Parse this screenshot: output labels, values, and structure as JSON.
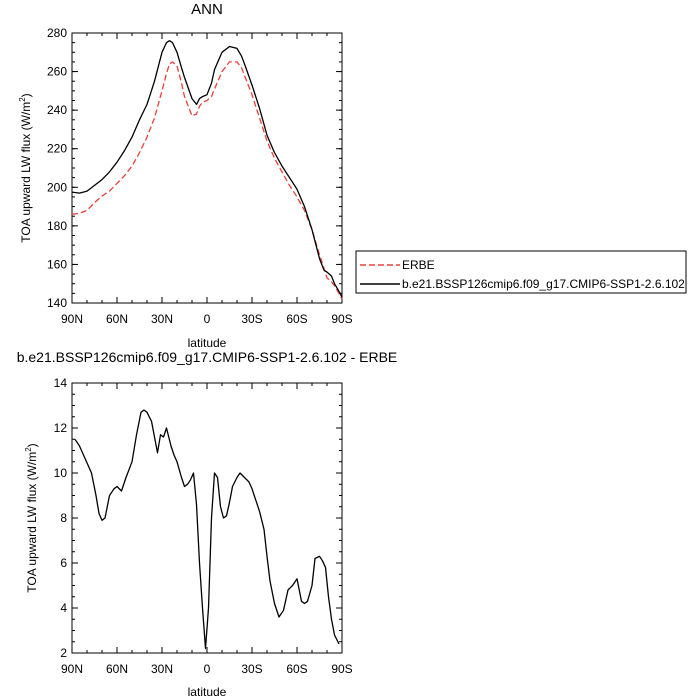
{
  "chart_data": [
    {
      "type": "line",
      "title": "ANN",
      "xlabel": "latitude",
      "ylabel_main": "TOA upward LW flux (W/m",
      "ylabel_sup": "2",
      "ylabel_tail": ")",
      "xlim": [
        90,
        -90
      ],
      "ylim": [
        140,
        280
      ],
      "xtick_values": [
        90,
        60,
        30,
        0,
        -30,
        -60,
        -90
      ],
      "xtick_labels": [
        "90N",
        "60N",
        "30N",
        "0",
        "30S",
        "60S",
        "90S"
      ],
      "ytick_values": [
        140,
        160,
        180,
        200,
        220,
        240,
        260,
        280
      ],
      "ytick_labels": [
        "140",
        "160",
        "180",
        "200",
        "220",
        "240",
        "260",
        "280"
      ],
      "legend_position": "right",
      "series": [
        {
          "name": "ERBE",
          "color": "#e8403a",
          "dash": "dashed",
          "x": [
            90,
            85,
            80,
            75,
            70,
            65,
            60,
            55,
            50,
            45,
            40,
            35,
            30,
            27,
            25,
            23,
            20,
            17,
            15,
            10,
            7,
            5,
            3,
            0,
            -3,
            -5,
            -10,
            -15,
            -20,
            -23,
            -25,
            -30,
            -35,
            -40,
            -45,
            -50,
            -55,
            -60,
            -65,
            -70,
            -75,
            -78,
            -80,
            -83,
            -85,
            -88,
            -90
          ],
          "y": [
            186,
            186.5,
            188,
            192,
            195.5,
            198,
            202,
            206,
            211,
            218,
            226,
            236,
            250,
            259,
            264,
            265,
            263,
            254,
            247,
            237,
            238,
            242,
            244,
            245,
            247,
            251,
            260,
            265,
            265,
            262,
            258,
            248,
            236,
            224,
            215,
            208,
            201,
            195,
            188,
            178,
            165,
            158,
            153,
            151,
            149,
            145,
            142
          ]
        },
        {
          "name": "b.e21.BSSP126cmip6.f09_g17.CMIP6-SSP1-2.6.102",
          "color": "#000000",
          "dash": "solid",
          "x": [
            90,
            85,
            80,
            75,
            70,
            65,
            60,
            55,
            50,
            45,
            40,
            35,
            30,
            27,
            25,
            23,
            20,
            17,
            15,
            10,
            7,
            5,
            3,
            0,
            -3,
            -5,
            -10,
            -15,
            -20,
            -23,
            -25,
            -30,
            -35,
            -40,
            -45,
            -50,
            -55,
            -60,
            -65,
            -70,
            -75,
            -78,
            -80,
            -83,
            -85,
            -88,
            -90
          ],
          "y": [
            197.5,
            197,
            198,
            201,
            204,
            208,
            213,
            219,
            226,
            235,
            243,
            255,
            270,
            275,
            276,
            275,
            270,
            262,
            257,
            246,
            243,
            246,
            247,
            248,
            254,
            261,
            270,
            273,
            272,
            268,
            264,
            253,
            241,
            227,
            218,
            211,
            205,
            199,
            190,
            178,
            163,
            157,
            156,
            154,
            150,
            146,
            143
          ]
        }
      ]
    },
    {
      "type": "line",
      "title": "b.e21.BSSP126cmip6.f09_g17.CMIP6-SSP1-2.6.102 - ERBE",
      "xlabel": "latitude",
      "ylabel_main": "TOA upward LW flux (W/m",
      "ylabel_sup": "2",
      "ylabel_tail": ")",
      "xlim": [
        90,
        -90
      ],
      "ylim": [
        2,
        14
      ],
      "xtick_values": [
        90,
        60,
        30,
        0,
        -30,
        -60,
        -90
      ],
      "xtick_labels": [
        "90N",
        "60N",
        "30N",
        "0",
        "30S",
        "60S",
        "90S"
      ],
      "ytick_values": [
        2,
        4,
        6,
        8,
        10,
        12,
        14
      ],
      "ytick_labels": [
        "2",
        "4",
        "6",
        "8",
        "10",
        "12",
        "14"
      ],
      "series": [
        {
          "color": "#000000",
          "dash": "solid",
          "x": [
            88,
            85,
            81,
            77,
            74,
            72,
            70,
            68,
            65,
            62,
            60,
            57,
            54,
            50,
            47,
            44,
            42,
            40,
            37,
            35,
            33,
            31,
            29,
            27,
            24,
            22,
            20,
            17,
            15,
            13,
            11,
            9,
            7,
            5,
            3,
            1,
            -1,
            -3,
            -5,
            -7,
            -9,
            -11,
            -13,
            -15,
            -17,
            -20,
            -22,
            -25,
            -28,
            -30,
            -32,
            -35,
            -38,
            -40,
            -42,
            -45,
            -48,
            -51,
            -54,
            -57,
            -60,
            -63,
            -65,
            -67,
            -70,
            -72,
            -75,
            -77,
            -79,
            -81,
            -83,
            -85,
            -88
          ],
          "y": [
            11.5,
            11.2,
            10.6,
            10.0,
            9.0,
            8.2,
            7.9,
            8.0,
            9.0,
            9.3,
            9.4,
            9.2,
            9.8,
            10.5,
            11.7,
            12.7,
            12.8,
            12.7,
            12.3,
            11.6,
            10.9,
            11.7,
            11.6,
            12.0,
            11.2,
            10.8,
            10.5,
            9.8,
            9.4,
            9.5,
            9.7,
            10.0,
            8.6,
            6.0,
            4.0,
            2.2,
            4.0,
            8.0,
            10.0,
            9.8,
            8.5,
            8.0,
            8.1,
            8.7,
            9.4,
            9.8,
            10.0,
            9.8,
            9.6,
            9.3,
            8.9,
            8.3,
            7.5,
            6.3,
            5.2,
            4.2,
            3.6,
            3.9,
            4.8,
            5.0,
            5.3,
            4.3,
            4.2,
            4.3,
            5.0,
            6.2,
            6.3,
            6.1,
            5.8,
            4.5,
            3.5,
            2.8,
            2.4
          ]
        }
      ]
    }
  ]
}
